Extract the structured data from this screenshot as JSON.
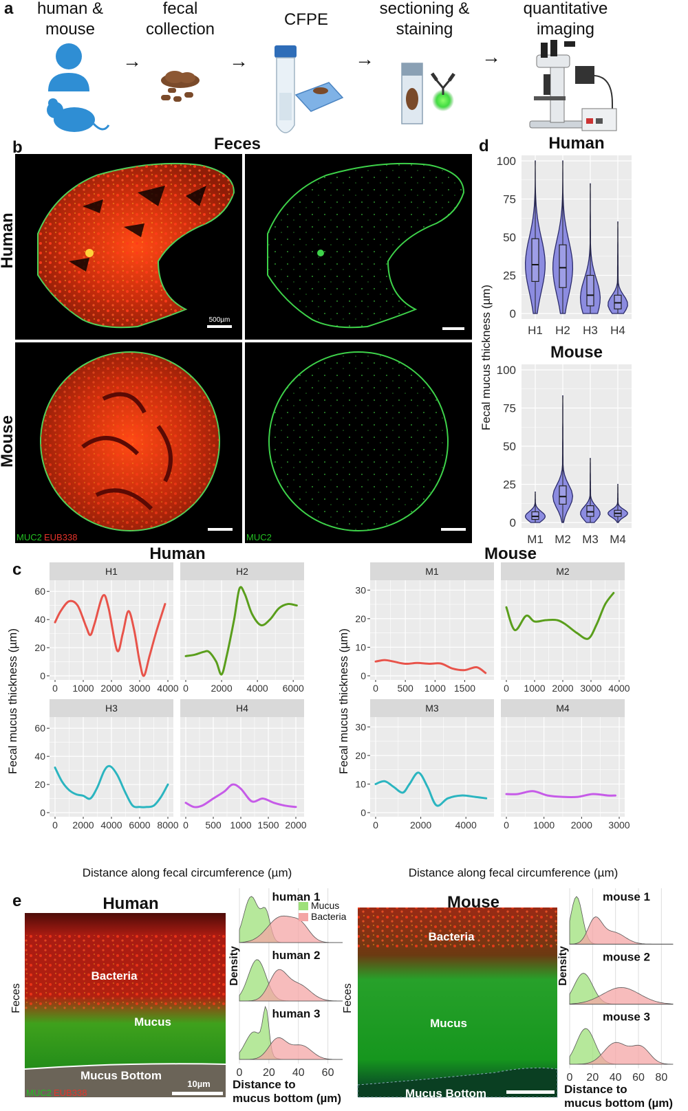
{
  "panel_a": {
    "letter": "a",
    "steps": [
      {
        "lines": [
          "human &",
          "mouse"
        ]
      },
      {
        "lines": [
          "fecal",
          "collection"
        ]
      },
      {
        "lines": [
          "CFPE"
        ]
      },
      {
        "lines": [
          "sectioning &",
          "staining"
        ]
      },
      {
        "lines": [
          "quantitative",
          "imaging"
        ]
      }
    ],
    "arrow_glyph": "→"
  },
  "panel_b": {
    "letter": "b",
    "title": "Feces",
    "row_labels": [
      "Human",
      "Mouse"
    ],
    "scale_label": "500µm",
    "legend_merge": {
      "green": "MUC2",
      "red": "EUB338"
    },
    "legend_single": "MUC2"
  },
  "panel_c": {
    "letter": "c",
    "groups": [
      "Human",
      "Mouse"
    ],
    "ylabel": "Fecal mucus thickness (µm)",
    "xlabel": "Distance along fecal circumference (µm)"
  },
  "panel_d": {
    "letter": "d",
    "ylabel": "Fecal mucus thickness (µm)"
  },
  "panel_e": {
    "letter": "e",
    "human": {
      "title": "Human",
      "side": "Feces",
      "bacteria": "Bacteria",
      "mucus": "Mucus",
      "bottom": "Mucus Bottom",
      "scale": "10µm",
      "legend_green": "MUC2",
      "legend_red": "EUB338"
    },
    "mouse": {
      "title": "Mouse",
      "side": "Feces",
      "bacteria": "Bacteria",
      "mucus": "Mucus",
      "bottom": "Mucus Bottom"
    },
    "density": {
      "ylabel": "Density",
      "xlabel": [
        "Distance to",
        "mucus bottom (µm)"
      ],
      "legend": [
        "Mucus",
        "Bacteria"
      ],
      "human_labels": [
        "human 1",
        "human 2",
        "human 3"
      ],
      "mouse_labels": [
        "mouse 1",
        "mouse 2",
        "mouse 3"
      ],
      "human_ticks": [
        0,
        20,
        40,
        60
      ],
      "mouse_ticks": [
        0,
        20,
        40,
        60,
        80
      ],
      "colors": {
        "mucus": "#9ee07a",
        "bacteria": "#f4a5a5"
      }
    }
  },
  "chart_data": [
    {
      "id": "c-human",
      "type": "line",
      "title": "Human",
      "xlabel": "Distance along fecal circumference (µm)",
      "ylabel": "Fecal mucus thickness (µm)",
      "ylim": [
        0,
        65
      ],
      "yticks": [
        0,
        20,
        40,
        60
      ],
      "facets": [
        {
          "name": "H1",
          "color": "#e8534a",
          "xlim": [
            0,
            4000
          ],
          "xticks": [
            0,
            1000,
            2000,
            3000,
            4000
          ],
          "x": [
            0,
            200,
            500,
            800,
            1100,
            1250,
            1400,
            1700,
            1900,
            2200,
            2400,
            2600,
            2800,
            3000,
            3150,
            3350,
            3600,
            3900
          ],
          "y": [
            38,
            46,
            53,
            50,
            35,
            29,
            37,
            57,
            48,
            18,
            30,
            46,
            33,
            10,
            0,
            14,
            32,
            51
          ]
        },
        {
          "name": "H2",
          "color": "#5a9e1c",
          "xlim": [
            0,
            6300
          ],
          "xticks": [
            0,
            2000,
            4000,
            6000
          ],
          "x": [
            0,
            500,
            1000,
            1300,
            1700,
            2000,
            2300,
            2700,
            3000,
            3300,
            3700,
            4200,
            4700,
            5200,
            5700,
            6200
          ],
          "y": [
            14,
            15,
            17,
            17,
            10,
            1,
            15,
            40,
            62,
            58,
            44,
            36,
            40,
            48,
            51,
            50
          ]
        },
        {
          "name": "H3",
          "color": "#2bb5c0",
          "xlim": [
            0,
            8000
          ],
          "xticks": [
            0,
            2000,
            4000,
            6000,
            8000
          ],
          "x": [
            0,
            500,
            1000,
            1500,
            2000,
            2500,
            3000,
            3500,
            3900,
            4400,
            5000,
            5500,
            6000,
            6500,
            7000,
            7500,
            8000
          ],
          "y": [
            32,
            22,
            16,
            13,
            12,
            10,
            18,
            30,
            33,
            27,
            14,
            5,
            4,
            4,
            5,
            11,
            20
          ]
        },
        {
          "name": "H4",
          "color": "#c65be8",
          "xlim": [
            0,
            2050
          ],
          "xticks": [
            0,
            500,
            1000,
            1500,
            2000
          ],
          "x": [
            0,
            150,
            300,
            500,
            700,
            850,
            1000,
            1200,
            1400,
            1600,
            1800,
            2000
          ],
          "y": [
            7,
            4,
            5,
            10,
            15,
            20,
            17,
            8,
            10,
            7,
            5,
            4
          ]
        }
      ]
    },
    {
      "id": "c-mouse",
      "type": "line",
      "title": "Mouse",
      "xlabel": "Distance along fecal circumference (µm)",
      "ylabel": "Fecal mucus thickness (µm)",
      "ylim": [
        0,
        32
      ],
      "yticks": [
        0,
        10,
        20,
        30
      ],
      "facets": [
        {
          "name": "M1",
          "color": "#e8534a",
          "xlim": [
            0,
            1900
          ],
          "xticks": [
            0,
            500,
            1000,
            1500
          ],
          "x": [
            0,
            150,
            300,
            500,
            700,
            900,
            1100,
            1300,
            1500,
            1700,
            1850
          ],
          "y": [
            5,
            5.5,
            5,
            4.2,
            4.5,
            4.2,
            4.3,
            2.5,
            2,
            3,
            1
          ]
        },
        {
          "name": "M2",
          "color": "#5a9e1c",
          "xlim": [
            0,
            4000
          ],
          "xticks": [
            0,
            1000,
            2000,
            3000,
            4000
          ],
          "x": [
            0,
            300,
            700,
            1000,
            1400,
            1800,
            2100,
            2500,
            2900,
            3200,
            3500,
            3800
          ],
          "y": [
            24,
            16,
            21,
            19,
            19.5,
            19.5,
            18,
            15,
            13,
            18,
            25,
            29
          ]
        },
        {
          "name": "M3",
          "color": "#2bb5c0",
          "xlim": [
            0,
            5000
          ],
          "xticks": [
            0,
            2000,
            4000
          ],
          "x": [
            0,
            400,
            800,
            1200,
            1500,
            1900,
            2300,
            2700,
            3200,
            3800,
            4400,
            4900
          ],
          "y": [
            10,
            11,
            9,
            7,
            10,
            14,
            9,
            2.5,
            5,
            6,
            5.5,
            5
          ]
        },
        {
          "name": "M4",
          "color": "#c65be8",
          "xlim": [
            0,
            3000
          ],
          "xticks": [
            0,
            1000,
            2000,
            3000
          ],
          "x": [
            0,
            300,
            700,
            1100,
            1500,
            1900,
            2300,
            2700,
            2900
          ],
          "y": [
            6.5,
            6.5,
            7.5,
            6,
            5.5,
            5.5,
            6.5,
            6,
            6
          ]
        }
      ]
    },
    {
      "id": "d-human",
      "type": "violin",
      "title": "Human",
      "ylabel": "Fecal mucus thickness (µm)",
      "ylim": [
        0,
        100
      ],
      "yticks": [
        0,
        25,
        50,
        75,
        100
      ],
      "categories": [
        "H1",
        "H2",
        "H3",
        "H4"
      ],
      "median": [
        32,
        30,
        12,
        7
      ],
      "q1": [
        21,
        17,
        5,
        3
      ],
      "q3": [
        49,
        45,
        25,
        12
      ],
      "max": [
        100,
        100,
        85,
        60
      ],
      "mode": [
        32,
        30,
        10,
        6
      ]
    },
    {
      "id": "d-mouse",
      "type": "violin",
      "title": "Mouse",
      "ylabel": "Fecal mucus thickness (µm)",
      "ylim": [
        0,
        100
      ],
      "yticks": [
        0,
        25,
        50,
        75,
        100
      ],
      "categories": [
        "M1",
        "M2",
        "M3",
        "M4"
      ],
      "median": [
        4,
        17,
        7,
        6
      ],
      "q1": [
        2,
        12,
        4,
        4
      ],
      "q3": [
        7,
        24,
        11,
        8
      ],
      "max": [
        20,
        83,
        42,
        25
      ],
      "mode": [
        4,
        17,
        6,
        6
      ]
    }
  ]
}
